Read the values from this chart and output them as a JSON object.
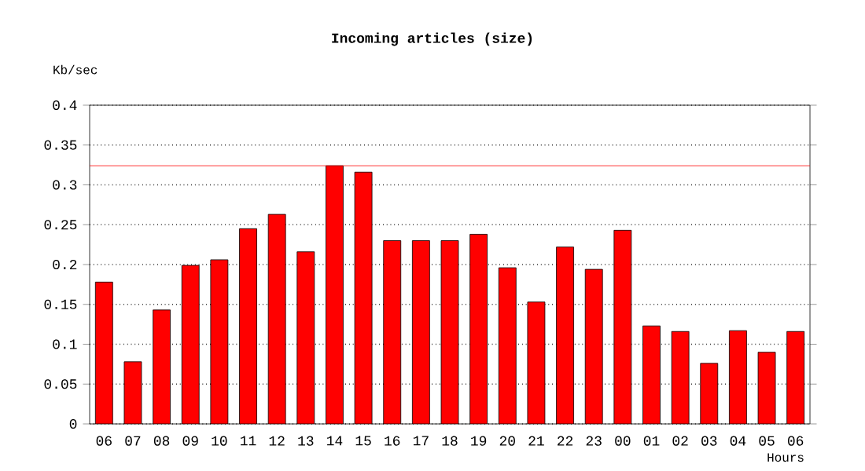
{
  "chart_data": {
    "type": "bar",
    "title": "Incoming articles (size)",
    "xlabel": "Hours",
    "ylabel": "Kb/sec",
    "categories": [
      "06",
      "07",
      "08",
      "09",
      "10",
      "11",
      "12",
      "13",
      "14",
      "15",
      "16",
      "17",
      "18",
      "19",
      "20",
      "21",
      "22",
      "23",
      "00",
      "01",
      "02",
      "03",
      "04",
      "05",
      "06"
    ],
    "values": [
      0.178,
      0.078,
      0.143,
      0.199,
      0.206,
      0.245,
      0.263,
      0.216,
      0.324,
      0.316,
      0.23,
      0.23,
      0.23,
      0.238,
      0.196,
      0.153,
      0.222,
      0.194,
      0.243,
      0.123,
      0.116,
      0.076,
      0.117,
      0.09,
      0.116
    ],
    "color": "#ff0000",
    "ylim": [
      0,
      0.4
    ],
    "yticks": [
      0,
      0.05,
      0.1,
      0.15,
      0.2,
      0.25,
      0.3,
      0.35,
      0.4
    ],
    "grid": "y",
    "ref_lines": [
      {
        "axis": "y",
        "value": 0.324,
        "color": "#ff0000"
      }
    ]
  }
}
